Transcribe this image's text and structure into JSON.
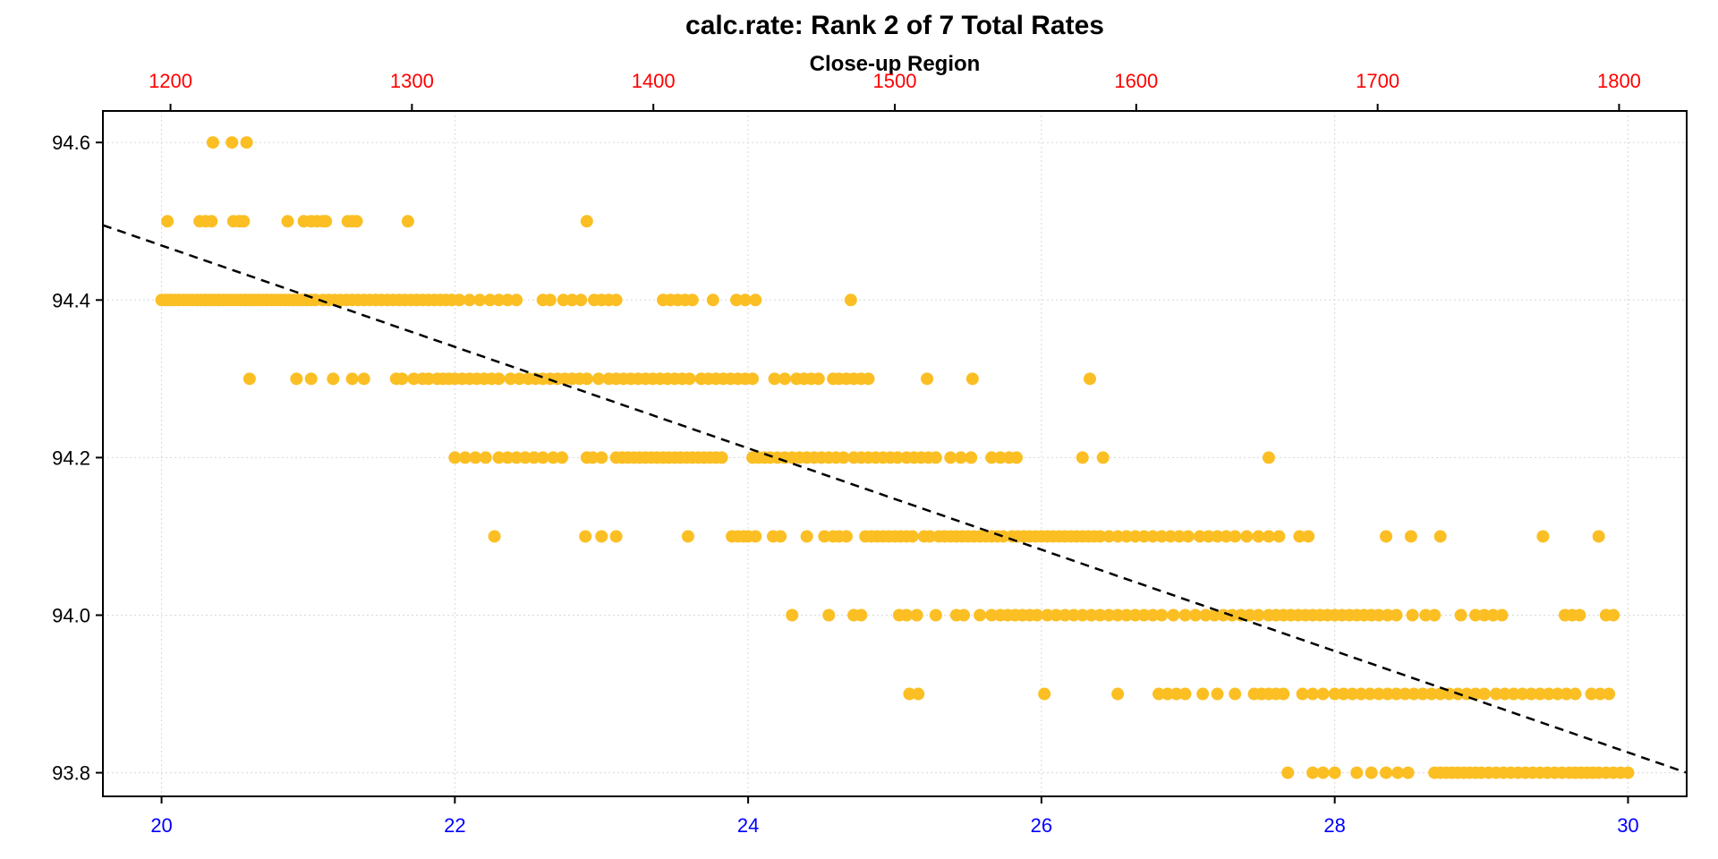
{
  "chart_data": {
    "type": "scatter",
    "title": "calc.rate: Rank 2 of 7 Total Rates",
    "subtitle": "Close-up Region",
    "xlabel": "",
    "ylabel": "",
    "x_bottom": {
      "range": [
        19.6,
        30.4
      ],
      "ticks": [
        20,
        22,
        24,
        26,
        28,
        30
      ],
      "tick_labels": [
        "20",
        "22",
        "24",
        "26",
        "28",
        "30"
      ],
      "label_color": "#0000ff"
    },
    "x_top": {
      "range": [
        1172,
        1828
      ],
      "ticks": [
        1200,
        1300,
        1400,
        1500,
        1600,
        1700,
        1800
      ],
      "tick_labels": [
        "1200",
        "1300",
        "1400",
        "1500",
        "1600",
        "1700",
        "1800"
      ],
      "label_color": "#ff0000"
    },
    "y_axis": {
      "range": [
        93.77,
        94.64
      ],
      "ticks": [
        93.8,
        94.0,
        94.2,
        94.4,
        94.6
      ],
      "tick_labels": [
        "93.8",
        "94.0",
        "94.2",
        "94.4",
        "94.6"
      ]
    },
    "grid": true,
    "grid_style": "dotted",
    "point_color": "#fbbf24",
    "fit_line": {
      "style": "dashed",
      "color": "#000000",
      "points": [
        [
          19.6,
          94.495
        ],
        [
          30.4,
          93.8
        ]
      ]
    },
    "series": [
      {
        "clusters": [
          {
            "y": 94.6,
            "x": [
              20.35,
              20.48,
              20.58
            ]
          },
          {
            "y": 94.5,
            "x": [
              20.04,
              20.26,
              20.3,
              20.34,
              20.49,
              20.53,
              20.56,
              20.86,
              20.97,
              21.02,
              21.06,
              21.1,
              21.12,
              21.27,
              21.3,
              21.33,
              21.68,
              22.9
            ]
          },
          {
            "y": 94.4,
            "x": [
              20.0,
              20.03,
              20.06,
              20.09,
              20.12,
              20.15,
              20.18,
              20.21,
              20.24,
              20.27,
              20.3,
              20.33,
              20.36,
              20.39,
              20.42,
              20.45,
              20.48,
              20.51,
              20.54,
              20.57,
              20.6,
              20.63,
              20.66,
              20.69,
              20.72,
              20.75,
              20.78,
              20.81,
              20.84,
              20.87,
              20.9,
              20.93,
              20.96,
              20.99,
              21.02,
              21.05,
              21.1,
              21.14,
              21.18,
              21.22,
              21.26,
              21.3,
              21.34,
              21.38,
              21.42,
              21.46,
              21.5,
              21.54,
              21.58,
              21.62,
              21.66,
              21.7,
              21.74,
              21.78,
              21.82,
              21.86,
              21.9,
              21.94,
              21.98,
              22.03,
              22.1,
              22.17,
              22.24,
              22.3,
              22.36,
              22.42,
              22.6,
              22.65,
              22.74,
              22.8,
              22.86,
              22.95,
              23.0,
              23.05,
              23.1,
              23.42,
              23.47,
              23.52,
              23.57,
              23.62,
              23.76,
              23.92,
              23.98,
              24.05,
              24.7
            ]
          },
          {
            "y": 94.3,
            "x": [
              20.6,
              20.92,
              21.02,
              21.17,
              21.3,
              21.38,
              21.6,
              21.64,
              21.72,
              21.78,
              21.82,
              21.88,
              21.92,
              21.96,
              22.0,
              22.05,
              22.1,
              22.15,
              22.2,
              22.25,
              22.3,
              22.38,
              22.44,
              22.5,
              22.55,
              22.6,
              22.65,
              22.7,
              22.75,
              22.8,
              22.85,
              22.9,
              22.98,
              23.05,
              23.1,
              23.15,
              23.2,
              23.25,
              23.3,
              23.35,
              23.4,
              23.45,
              23.5,
              23.55,
              23.6,
              23.68,
              23.73,
              23.78,
              23.83,
              23.88,
              23.93,
              23.98,
              24.03,
              24.18,
              24.25,
              24.33,
              24.38,
              24.43,
              24.48,
              24.58,
              24.62,
              24.67,
              24.72,
              24.77,
              24.82,
              25.22,
              25.53,
              26.33
            ]
          },
          {
            "y": 94.2,
            "x": [
              22.0,
              22.07,
              22.14,
              22.21,
              22.3,
              22.36,
              22.42,
              22.48,
              22.54,
              22.6,
              22.67,
              22.73,
              22.9,
              22.94,
              23.0,
              23.1,
              23.14,
              23.18,
              23.22,
              23.26,
              23.3,
              23.34,
              23.38,
              23.42,
              23.46,
              23.5,
              23.54,
              23.58,
              23.62,
              23.66,
              23.7,
              23.74,
              23.78,
              23.82,
              24.03,
              24.07,
              24.11,
              24.15,
              24.2,
              24.25,
              24.3,
              24.35,
              24.4,
              24.45,
              24.5,
              24.55,
              24.6,
              24.65,
              24.72,
              24.77,
              24.82,
              24.87,
              24.92,
              24.97,
              25.02,
              25.08,
              25.13,
              25.18,
              25.23,
              25.28,
              25.38,
              25.45,
              25.52,
              25.66,
              25.72,
              25.78,
              25.83,
              26.28,
              26.42,
              27.55
            ]
          },
          {
            "y": 94.1,
            "x": [
              22.27,
              22.89,
              23.0,
              23.1,
              23.59,
              23.89,
              23.93,
              23.97,
              24.0,
              24.05,
              24.17,
              24.22,
              24.4,
              24.52,
              24.58,
              24.62,
              24.67,
              24.8,
              24.84,
              24.88,
              24.92,
              24.96,
              25.0,
              25.04,
              25.08,
              25.12,
              25.2,
              25.24,
              25.3,
              25.34,
              25.38,
              25.42,
              25.46,
              25.5,
              25.54,
              25.58,
              25.62,
              25.66,
              25.7,
              25.74,
              25.8,
              25.84,
              25.88,
              25.92,
              25.96,
              26.0,
              26.04,
              26.08,
              26.12,
              26.16,
              26.2,
              26.24,
              26.28,
              26.32,
              26.36,
              26.4,
              26.46,
              26.52,
              26.58,
              26.64,
              26.7,
              26.76,
              26.82,
              26.88,
              26.94,
              27.0,
              27.08,
              27.14,
              27.2,
              27.26,
              27.32,
              27.4,
              27.48,
              27.55,
              27.62,
              27.76,
              27.82,
              28.35,
              28.52,
              28.72,
              29.42,
              29.8
            ]
          },
          {
            "y": 94.0,
            "x": [
              24.3,
              24.55,
              24.72,
              24.77,
              25.03,
              25.08,
              25.15,
              25.28,
              25.42,
              25.47,
              25.58,
              25.66,
              25.72,
              25.77,
              25.82,
              25.87,
              25.92,
              25.97,
              26.04,
              26.1,
              26.16,
              26.22,
              26.28,
              26.34,
              26.4,
              26.46,
              26.52,
              26.58,
              26.64,
              26.7,
              26.76,
              26.82,
              26.9,
              26.98,
              27.05,
              27.12,
              27.18,
              27.24,
              27.3,
              27.36,
              27.42,
              27.48,
              27.55,
              27.6,
              27.65,
              27.7,
              27.75,
              27.8,
              27.85,
              27.9,
              27.95,
              28.0,
              28.05,
              28.1,
              28.15,
              28.2,
              28.25,
              28.3,
              28.36,
              28.42,
              28.53,
              28.62,
              28.68,
              28.86,
              28.96,
              29.02,
              29.08,
              29.14,
              29.57,
              29.62,
              29.67,
              29.85,
              29.9
            ]
          },
          {
            "y": 93.9,
            "x": [
              25.1,
              25.16,
              26.02,
              26.52,
              26.8,
              26.86,
              26.92,
              26.98,
              27.1,
              27.2,
              27.32,
              27.45,
              27.5,
              27.55,
              27.6,
              27.65,
              27.78,
              27.85,
              27.92,
              28.0,
              28.06,
              28.12,
              28.18,
              28.24,
              28.3,
              28.36,
              28.42,
              28.48,
              28.54,
              28.6,
              28.66,
              28.72,
              28.78,
              28.84,
              28.9,
              28.96,
              29.02,
              29.1,
              29.16,
              29.22,
              29.28,
              29.34,
              29.4,
              29.46,
              29.52,
              29.58,
              29.64,
              29.75,
              29.81,
              29.87
            ]
          },
          {
            "y": 93.8,
            "x": [
              27.68,
              27.85,
              27.92,
              28.0,
              28.15,
              28.25,
              28.35,
              28.43,
              28.5,
              28.68,
              28.72,
              28.76,
              28.8,
              28.84,
              28.88,
              28.92,
              28.96,
              29.0,
              29.05,
              29.1,
              29.15,
              29.2,
              29.25,
              29.3,
              29.35,
              29.4,
              29.45,
              29.5,
              29.55,
              29.6,
              29.64,
              29.68,
              29.72,
              29.76,
              29.8,
              29.85,
              29.9,
              29.95,
              30.0
            ]
          }
        ]
      }
    ]
  }
}
